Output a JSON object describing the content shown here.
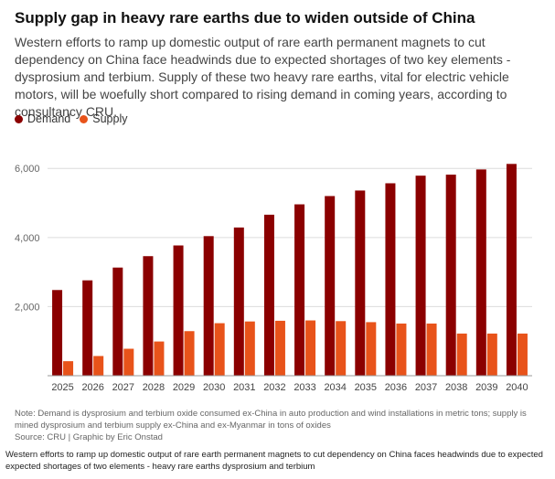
{
  "title": "Supply gap in heavy rare earths due to widen outside of China",
  "subtitle": "Western efforts to ramp up domestic output of rare earth permanent magnets to cut dependency on China face headwinds due to expected shortages of two key elements - dysprosium and terbium. Supply of these two heavy rare earths, vital for electric vehicle motors, will be woefully short compared to rising demand in coming years, according to consultancy CRU.",
  "note": "Note: Demand is dysprosium and terbium oxide consumed ex-China in auto production and wind installations in metric tons; supply is mined dysprosium and terbium supply ex-China and ex-Myanmar in tons of oxides",
  "source": "Source: CRU | Graphic by Eric Onstad",
  "caption": "Western efforts to ramp up domestic output of rare earth permanent magnets to cut dependency on China faces headwinds due to expected expected shortages of two elements - heavy rare earths dysprosium and terbium",
  "colors": {
    "demand": "#8b0000",
    "supply": "#e8531a",
    "grid": "#dcdcdc",
    "axis": "#999999"
  },
  "chart_data": {
    "type": "bar",
    "categories": [
      "2025",
      "2026",
      "2027",
      "2028",
      "2029",
      "2030",
      "2031",
      "2032",
      "2033",
      "2034",
      "2035",
      "2036",
      "2037",
      "2038",
      "2039",
      "2040"
    ],
    "series": [
      {
        "name": "Demand",
        "values": [
          2480,
          2760,
          3130,
          3460,
          3770,
          4040,
          4290,
          4660,
          4960,
          5200,
          5360,
          5570,
          5790,
          5820,
          5970,
          6130
        ]
      },
      {
        "name": "Supply",
        "values": [
          420,
          570,
          780,
          990,
          1290,
          1520,
          1570,
          1590,
          1600,
          1580,
          1550,
          1510,
          1510,
          1220,
          1220,
          1220
        ]
      }
    ],
    "yticks": [
      "2,000",
      "4,000",
      "6,000"
    ],
    "ytick_values": [
      2000,
      4000,
      6000
    ],
    "ylim": [
      0,
      6800
    ],
    "grid": true,
    "legend": "top-left"
  }
}
